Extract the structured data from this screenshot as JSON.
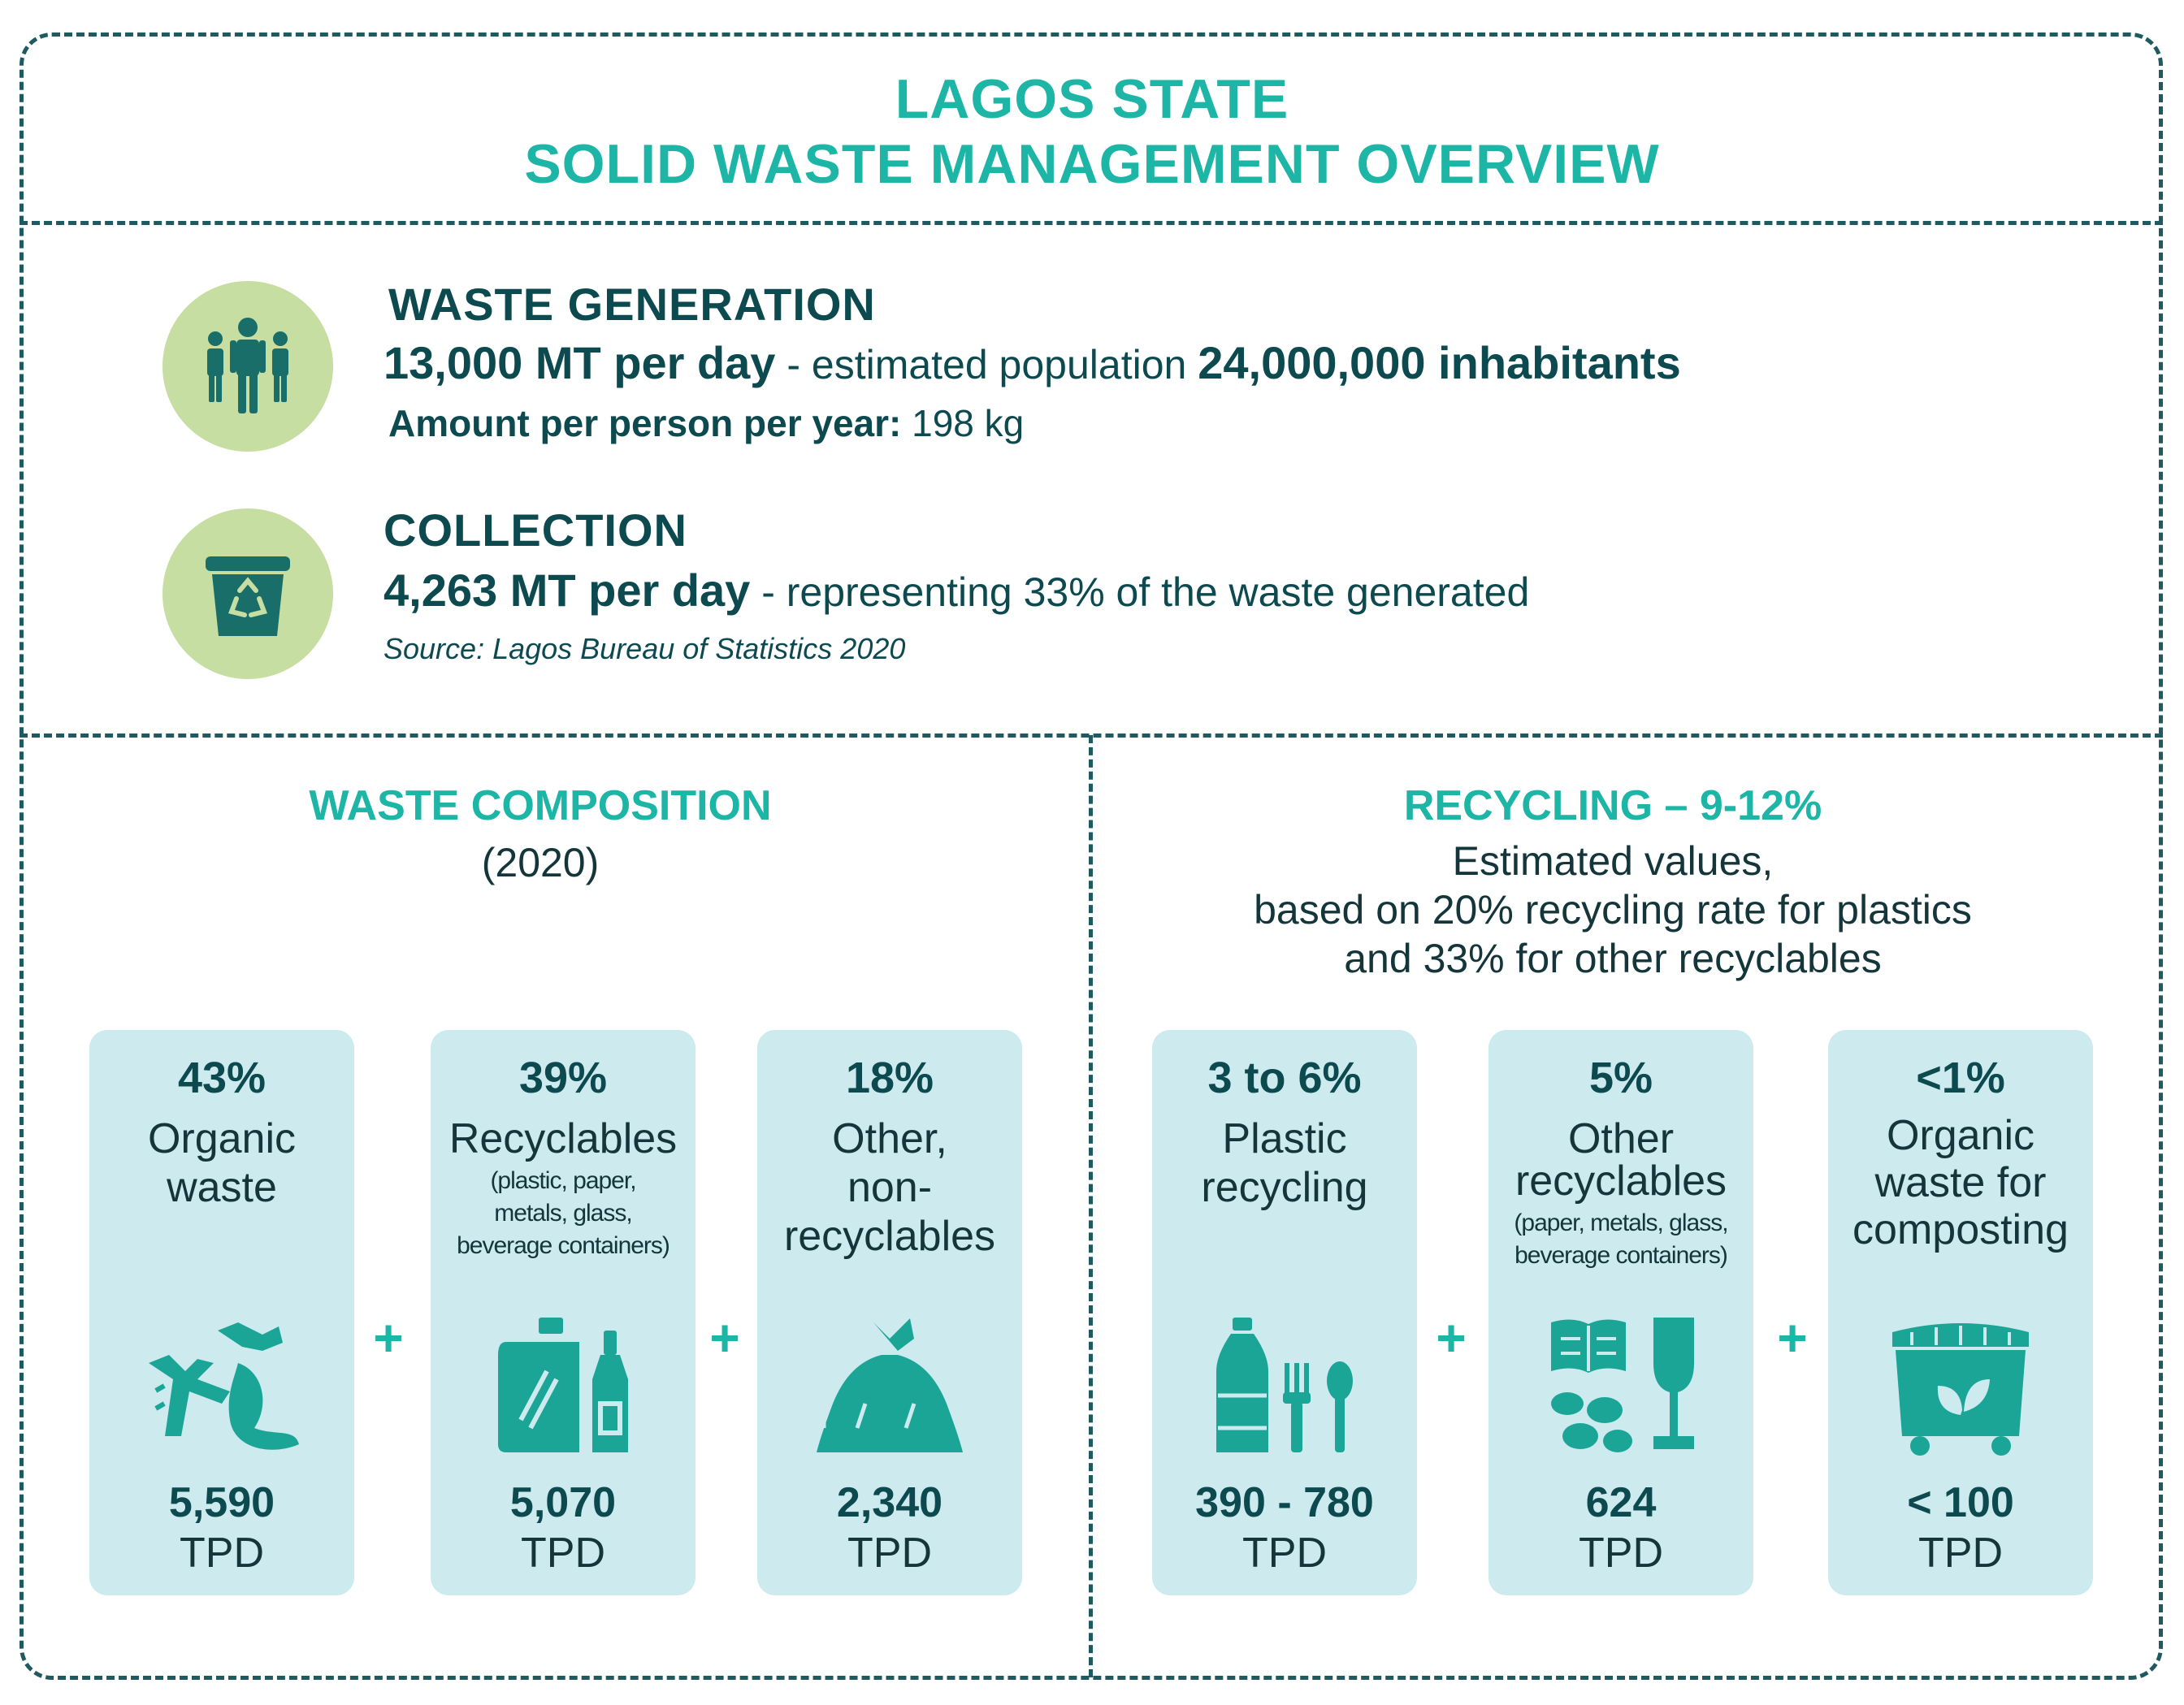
{
  "header": {
    "title_line1": "LAGOS STATE",
    "title_line2": "SOLID WASTE MANAGEMENT OVERVIEW"
  },
  "generation": {
    "icon": "people-icon",
    "heading": "WASTE GENERATION",
    "amount": "13,000 MT per day",
    "separator": " - estimated population ",
    "population": "24,000,000 inhabitants",
    "per_person_label": "Amount per person per year:",
    "per_person_value": " 198 kg"
  },
  "collection": {
    "icon": "recycle-bin-icon",
    "heading": "COLLECTION",
    "amount": "4,263 MT per day",
    "description": " - representing 33% of the waste generated",
    "source": "Source: Lagos Bureau of Statistics 2020"
  },
  "composition": {
    "title": "WASTE COMPOSITION",
    "year": "(2020)",
    "plus": "+",
    "cards": [
      {
        "pct": "43%",
        "label_lines": [
          "Organic",
          "waste"
        ],
        "note_lines": [],
        "value": "5,590",
        "unit": "TPD",
        "icon": "fish-bone-banana-peel-icon"
      },
      {
        "pct": "39%",
        "label_lines": [
          "Recyclables"
        ],
        "note_lines": [
          "(plastic, paper,",
          "metals, glass,",
          "beverage containers)"
        ],
        "value": "5,070",
        "unit": "TPD",
        "icon": "bottle-container-icon"
      },
      {
        "pct": "18%",
        "label_lines": [
          "Other,",
          "non-",
          "recyclables"
        ],
        "note_lines": [],
        "value": "2,340",
        "unit": "TPD",
        "icon": "garbage-bag-icon"
      }
    ]
  },
  "recycling": {
    "title": "RECYCLING – 9-12%",
    "subtitle_lines": [
      "Estimated values,",
      "based on 20% recycling rate for plastics",
      "and 33% for other recyclables"
    ],
    "plus": "+",
    "cards": [
      {
        "pct": "3 to 6%",
        "label_lines": [
          "Plastic",
          "recycling"
        ],
        "note_lines": [],
        "value": "390 - 780",
        "unit": "TPD",
        "icon": "plastic-bottle-cutlery-icon"
      },
      {
        "pct": "5%",
        "label_lines": [
          "Other",
          "recyclables"
        ],
        "note_lines": [
          "(paper, metals, glass,",
          "beverage containers)"
        ],
        "value": "624",
        "unit": "TPD",
        "icon": "book-cans-glass-icon"
      },
      {
        "pct": "<1%",
        "label_lines": [
          "Organic",
          "waste for",
          "composting"
        ],
        "note_lines": [],
        "value": "< 100",
        "unit": "TPD",
        "icon": "compost-bin-icon"
      }
    ]
  },
  "colors": {
    "accent": "#1db5a5",
    "dark": "#0d4a50",
    "card_bg": "#cdeaee",
    "circle_bg": "#c6dea1",
    "icon": "#1aa596"
  }
}
